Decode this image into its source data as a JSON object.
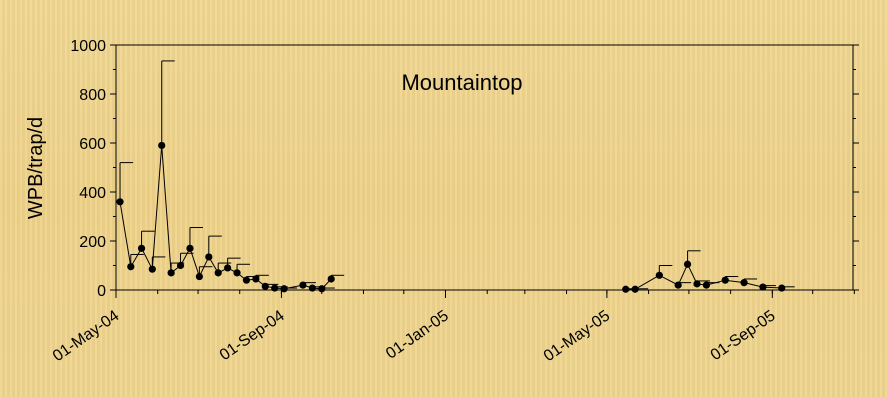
{
  "chart_data": {
    "type": "line",
    "title": "Mountaintop",
    "ylabel": "WPB/trap/d",
    "xlabel": "",
    "ylim": [
      0,
      1000
    ],
    "y_ticks": [
      "0",
      "200",
      "400",
      "600",
      "800",
      "1000"
    ],
    "x_domain": [
      "2004-05-01",
      "2005-10-31"
    ],
    "x_tick_labels": [
      {
        "date": "2004-05-01",
        "label": "01-May-04"
      },
      {
        "date": "2004-09-01",
        "label": "01-Sep-04"
      },
      {
        "date": "2005-01-01",
        "label": "01-Jan-05"
      },
      {
        "date": "2005-05-01",
        "label": "01-May-05"
      },
      {
        "date": "2005-09-01",
        "label": "01-Sep-05"
      }
    ],
    "grid": false,
    "legend": "none",
    "series": [
      {
        "segments": [
          [
            {
              "x": "2004-05-04",
              "y": 360,
              "err": 160
            },
            {
              "x": "2004-05-12",
              "y": 95,
              "err": 50
            },
            {
              "x": "2004-05-20",
              "y": 170,
              "err": 70
            },
            {
              "x": "2004-05-28",
              "y": 85,
              "err": 50
            },
            {
              "x": "2004-06-04",
              "y": 590,
              "err": 345
            },
            {
              "x": "2004-06-11",
              "y": 70,
              "err": 40
            },
            {
              "x": "2004-06-18",
              "y": 100,
              "err": 50
            },
            {
              "x": "2004-06-25",
              "y": 170,
              "err": 85
            },
            {
              "x": "2004-07-02",
              "y": 55,
              "err": 40
            },
            {
              "x": "2004-07-09",
              "y": 135,
              "err": 85
            },
            {
              "x": "2004-07-16",
              "y": 70,
              "err": 40
            },
            {
              "x": "2004-07-23",
              "y": 90,
              "err": 40
            },
            {
              "x": "2004-07-30",
              "y": 70,
              "err": 35
            },
            {
              "x": "2004-08-06",
              "y": 40,
              "err": 15
            },
            {
              "x": "2004-08-13",
              "y": 45,
              "err": 15
            },
            {
              "x": "2004-08-20",
              "y": 15,
              "err": 8
            },
            {
              "x": "2004-08-27",
              "y": 8,
              "err": 5
            },
            {
              "x": "2004-09-03",
              "y": 5,
              "err": 3
            },
            {
              "x": "2004-09-17",
              "y": 20,
              "err": 10
            },
            {
              "x": "2004-09-24",
              "y": 8,
              "err": 5
            },
            {
              "x": "2004-10-01",
              "y": 5,
              "err": 3
            },
            {
              "x": "2004-10-08",
              "y": 45,
              "err": 15
            }
          ],
          [
            {
              "x": "2005-05-15",
              "y": 3,
              "err": 2
            },
            {
              "x": "2005-05-22",
              "y": 3,
              "err": 2
            },
            {
              "x": "2005-06-09",
              "y": 60,
              "err": 40
            },
            {
              "x": "2005-06-23",
              "y": 20,
              "err": 10
            },
            {
              "x": "2005-06-30",
              "y": 105,
              "err": 55
            },
            {
              "x": "2005-07-07",
              "y": 25,
              "err": 12
            },
            {
              "x": "2005-07-14",
              "y": 20,
              "err": 10
            },
            {
              "x": "2005-07-28",
              "y": 40,
              "err": 15
            },
            {
              "x": "2005-08-11",
              "y": 30,
              "err": 15
            },
            {
              "x": "2005-08-25",
              "y": 12,
              "err": 6
            },
            {
              "x": "2005-09-08",
              "y": 8,
              "err": 5
            }
          ]
        ]
      }
    ]
  }
}
